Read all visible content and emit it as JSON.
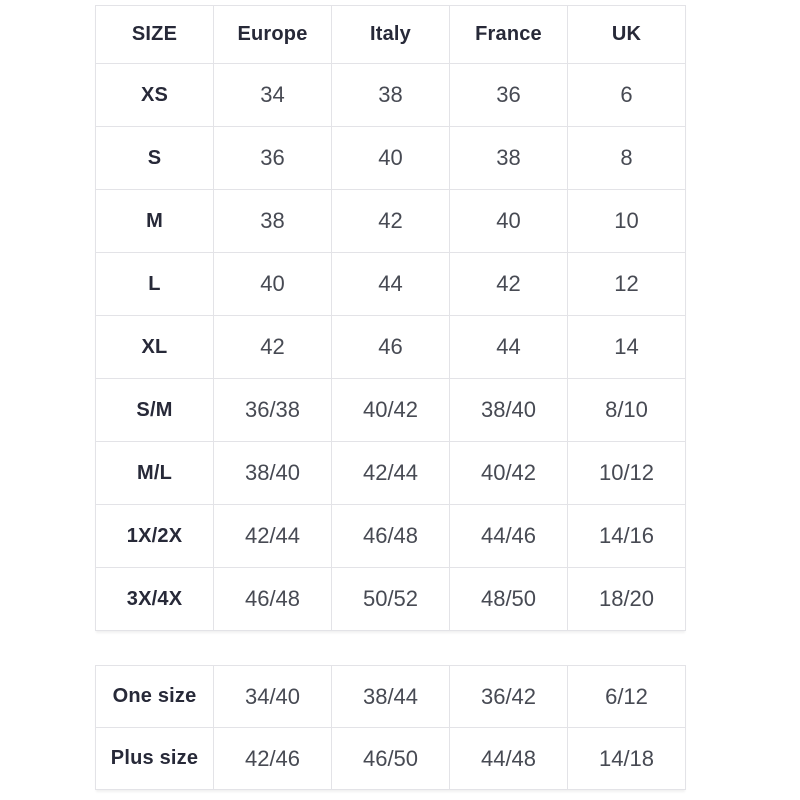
{
  "page": {
    "background": "#ffffff"
  },
  "colors": {
    "border": "#e3e3e7",
    "header_text": "#272938",
    "value_text": "#474a53"
  },
  "size_table": {
    "headers": [
      "SIZE",
      "Europe",
      "Italy",
      "France",
      "UK"
    ],
    "rows": [
      {
        "label": "XS",
        "values": [
          "34",
          "38",
          "36",
          "6"
        ]
      },
      {
        "label": "S",
        "values": [
          "36",
          "40",
          "38",
          "8"
        ]
      },
      {
        "label": "M",
        "values": [
          "38",
          "42",
          "40",
          "10"
        ]
      },
      {
        "label": "L",
        "values": [
          "40",
          "44",
          "42",
          "12"
        ]
      },
      {
        "label": "XL",
        "values": [
          "42",
          "46",
          "44",
          "14"
        ]
      },
      {
        "label": "S/M",
        "values": [
          "36/38",
          "40/42",
          "38/40",
          "8/10"
        ]
      },
      {
        "label": "M/L",
        "values": [
          "38/40",
          "42/44",
          "40/42",
          "10/12"
        ]
      },
      {
        "label": "1X/2X",
        "values": [
          "42/44",
          "46/48",
          "44/46",
          "14/16"
        ]
      },
      {
        "label": "3X/4X",
        "values": [
          "46/48",
          "50/52",
          "48/50",
          "18/20"
        ]
      }
    ]
  },
  "one_size_table": {
    "rows": [
      {
        "label": "One size",
        "values": [
          "34/40",
          "38/44",
          "36/42",
          "6/12"
        ]
      },
      {
        "label": "Plus size",
        "values": [
          "42/46",
          "46/50",
          "44/48",
          "14/18"
        ]
      }
    ]
  }
}
